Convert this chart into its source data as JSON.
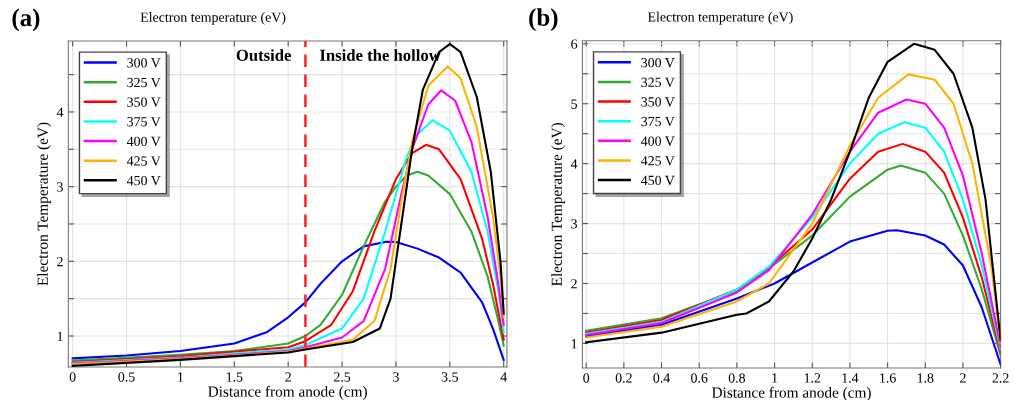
{
  "chart_data": [
    {
      "type": "line",
      "title": "(a)",
      "subtitle": "Electron temperature (eV)",
      "xlabel": "Distance from anode (cm)",
      "ylabel": "Electron Temperature (eV)",
      "xlim": [
        -0.04,
        4.03
      ],
      "ylim": [
        0.585,
        4.95
      ],
      "xticks": [
        0,
        0.5,
        1,
        1.5,
        2,
        2.5,
        3,
        3.5,
        4
      ],
      "yticks": [
        1,
        {
          "value": 1.5,
          "label": null
        },
        2,
        {
          "value": 2.5,
          "label": null
        },
        3,
        {
          "value": 3.5,
          "label": null
        },
        4,
        {
          "value": 4.5,
          "label": null
        }
      ],
      "grid": true,
      "legend": "top left",
      "line_style": "solid",
      "ref_lines": [
        {
          "axis": "x",
          "value": 2.16,
          "color": "#ff2020",
          "line_style": "dashed"
        }
      ],
      "annotations": [
        "Outside",
        "Inside the hollow"
      ],
      "series": [
        {
          "name": "300 V",
          "color": "#0000ff",
          "x": [
            0,
            0.5,
            1,
            1.5,
            1.8,
            2,
            2.16,
            2.3,
            2.5,
            2.7,
            2.9,
            3.0,
            3.2,
            3.4,
            3.6,
            3.8,
            3.9,
            4.0
          ],
          "values": [
            0.7,
            0.74,
            0.8,
            0.9,
            1.05,
            1.25,
            1.45,
            1.7,
            2.0,
            2.2,
            2.26,
            2.26,
            2.17,
            2.05,
            1.85,
            1.45,
            1.1,
            0.68
          ]
        },
        {
          "name": "325 V",
          "color": "#33aa33",
          "x": [
            0,
            1,
            1.5,
            2,
            2.16,
            2.3,
            2.5,
            2.7,
            2.9,
            3.0,
            3.1,
            3.2,
            3.3,
            3.5,
            3.7,
            3.85,
            3.95,
            4.0
          ],
          "values": [
            0.67,
            0.75,
            0.8,
            0.9,
            1.0,
            1.15,
            1.55,
            2.2,
            2.8,
            3.0,
            3.15,
            3.2,
            3.15,
            2.9,
            2.4,
            1.8,
            1.2,
            0.87
          ]
        },
        {
          "name": "350 V",
          "color": "#ff0000",
          "x": [
            0,
            1,
            2,
            2.16,
            2.4,
            2.6,
            2.8,
            3.0,
            3.15,
            3.28,
            3.4,
            3.6,
            3.8,
            3.9,
            4.0
          ],
          "values": [
            0.65,
            0.73,
            0.85,
            0.93,
            1.15,
            1.6,
            2.4,
            3.1,
            3.45,
            3.56,
            3.5,
            3.1,
            2.3,
            1.7,
            0.95
          ]
        },
        {
          "name": "375 V",
          "color": "#00ffff",
          "x": [
            0,
            1,
            2,
            2.16,
            2.5,
            2.7,
            2.9,
            3.1,
            3.2,
            3.34,
            3.5,
            3.7,
            3.85,
            3.95,
            4.0
          ],
          "values": [
            0.64,
            0.71,
            0.82,
            0.88,
            1.1,
            1.5,
            2.4,
            3.4,
            3.7,
            3.89,
            3.75,
            3.2,
            2.4,
            1.6,
            1.05
          ]
        },
        {
          "name": "400 V",
          "color": "#ff00ff",
          "x": [
            0,
            1,
            2,
            2.16,
            2.5,
            2.7,
            2.9,
            3.05,
            3.15,
            3.3,
            3.42,
            3.55,
            3.7,
            3.85,
            3.95,
            4.0
          ],
          "values": [
            0.63,
            0.7,
            0.8,
            0.85,
            0.98,
            1.2,
            1.9,
            2.9,
            3.5,
            4.1,
            4.29,
            4.15,
            3.6,
            2.6,
            1.7,
            1.15
          ]
        },
        {
          "name": "425 V",
          "color": "#ffb300",
          "x": [
            0,
            1,
            2,
            2.16,
            2.6,
            2.8,
            2.95,
            3.05,
            3.15,
            3.3,
            3.48,
            3.6,
            3.75,
            3.9,
            3.97,
            4.0
          ],
          "values": [
            0.62,
            0.69,
            0.79,
            0.83,
            0.95,
            1.2,
            1.9,
            2.8,
            3.6,
            4.35,
            4.61,
            4.45,
            3.8,
            2.6,
            1.8,
            1.25
          ]
        },
        {
          "name": "450 V",
          "color": "#000000",
          "x": [
            0,
            1,
            2,
            2.16,
            2.6,
            2.85,
            2.95,
            3.05,
            3.15,
            3.25,
            3.4,
            3.5,
            3.6,
            3.75,
            3.88,
            3.97,
            4.0
          ],
          "values": [
            0.6,
            0.68,
            0.78,
            0.82,
            0.92,
            1.1,
            1.5,
            2.5,
            3.5,
            4.3,
            4.8,
            4.91,
            4.8,
            4.2,
            3.2,
            2.0,
            1.3
          ]
        }
      ]
    },
    {
      "type": "line",
      "title": "(b)",
      "subtitle": "Electron temperature (eV)",
      "xlabel": "Distance from anode (cm)",
      "ylabel": "Electron Temperature (eV)",
      "xlim": [
        -0.02,
        2.2
      ],
      "ylim": [
        0.59,
        6.05
      ],
      "xticks": [
        0,
        0.2,
        0.4,
        0.6,
        0.8,
        1,
        1.2,
        1.4,
        1.6,
        1.8,
        2,
        2.2
      ],
      "yticks": [
        1,
        {
          "value": 1.5,
          "label": null
        },
        2,
        {
          "value": 2.5,
          "label": null
        },
        3,
        {
          "value": 3.5,
          "label": null
        },
        4,
        {
          "value": 4.5,
          "label": null
        },
        5,
        {
          "value": 5.5,
          "label": null
        },
        6
      ],
      "grid": true,
      "legend": "top left",
      "line_style": "solid",
      "series": [
        {
          "name": "300 V",
          "color": "#0000ff",
          "x": [
            0,
            0.4,
            0.8,
            1.0,
            1.2,
            1.4,
            1.6,
            1.65,
            1.8,
            1.9,
            2.0,
            2.1,
            2.2
          ],
          "values": [
            1.12,
            1.31,
            1.75,
            2.0,
            2.35,
            2.7,
            2.88,
            2.89,
            2.8,
            2.65,
            2.3,
            1.6,
            0.65
          ]
        },
        {
          "name": "325 V",
          "color": "#33aa33",
          "x": [
            0,
            0.4,
            0.8,
            0.97,
            1.2,
            1.4,
            1.6,
            1.67,
            1.8,
            1.9,
            2.0,
            2.1,
            2.2
          ],
          "values": [
            1.21,
            1.42,
            1.88,
            2.25,
            2.8,
            3.45,
            3.9,
            3.97,
            3.85,
            3.5,
            2.8,
            1.9,
            0.8
          ]
        },
        {
          "name": "350 V",
          "color": "#ff0000",
          "x": [
            0,
            0.4,
            0.8,
            0.97,
            1.2,
            1.4,
            1.55,
            1.68,
            1.8,
            1.9,
            2.0,
            2.1,
            2.2
          ],
          "values": [
            1.18,
            1.39,
            1.9,
            2.27,
            2.9,
            3.75,
            4.2,
            4.33,
            4.2,
            3.85,
            3.1,
            2.1,
            0.85
          ]
        },
        {
          "name": "375 V",
          "color": "#00ffff",
          "x": [
            0,
            0.4,
            0.8,
            0.97,
            1.2,
            1.4,
            1.55,
            1.69,
            1.8,
            1.9,
            2.0,
            2.1,
            2.2
          ],
          "values": [
            1.16,
            1.36,
            1.9,
            2.28,
            3.1,
            4.0,
            4.5,
            4.69,
            4.6,
            4.2,
            3.4,
            2.3,
            0.9
          ]
        },
        {
          "name": "400 V",
          "color": "#ff00ff",
          "x": [
            0,
            0.4,
            0.8,
            0.97,
            1.2,
            1.4,
            1.55,
            1.7,
            1.8,
            1.9,
            2.0,
            2.1,
            2.2
          ],
          "values": [
            1.14,
            1.34,
            1.85,
            2.22,
            3.15,
            4.2,
            4.85,
            5.07,
            5.0,
            4.6,
            3.8,
            2.5,
            0.95
          ]
        },
        {
          "name": "425 V",
          "color": "#ffb300",
          "x": [
            0,
            0.4,
            0.8,
            0.97,
            1.2,
            1.4,
            1.55,
            1.71,
            1.85,
            1.95,
            2.05,
            2.15,
            2.2
          ],
          "values": [
            1.1,
            1.28,
            1.7,
            2.0,
            3.0,
            4.3,
            5.1,
            5.49,
            5.4,
            5.0,
            4.0,
            2.3,
            1.0
          ]
        },
        {
          "name": "450 V",
          "color": "#000000",
          "x": [
            0,
            0.4,
            0.8,
            0.85,
            0.97,
            1.1,
            1.2,
            1.3,
            1.4,
            1.5,
            1.6,
            1.74,
            1.85,
            1.95,
            2.05,
            2.12,
            2.2
          ],
          "values": [
            1.02,
            1.18,
            1.48,
            1.5,
            1.7,
            2.2,
            2.75,
            3.4,
            4.2,
            5.1,
            5.7,
            6.0,
            5.9,
            5.5,
            4.6,
            3.4,
            1.05
          ]
        }
      ]
    }
  ]
}
